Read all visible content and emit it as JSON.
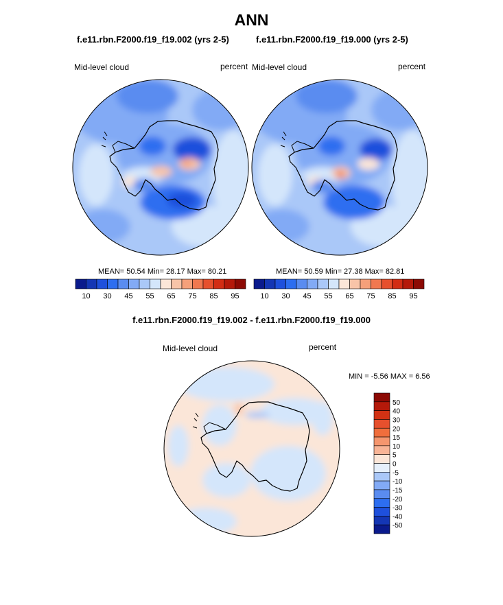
{
  "page": {
    "title": "ANN",
    "diff_title": "f.e11.rbn.F2000.f19_f19.002 - f.e11.rbn.F2000.f19_f19.000"
  },
  "panels": [
    {
      "case": "f.e11.rbn.F2000.f19_f19.002 (yrs 2-5)",
      "variable": "Mid-level cloud",
      "units": "percent",
      "stats": "MEAN=  50.54  Min=  28.17  Max=  80.21"
    },
    {
      "case": "f.e11.rbn.F2000.f19_f19.000 (yrs 2-5)",
      "variable": "Mid-level cloud",
      "units": "percent",
      "stats": "MEAN=  50.59  Min=  27.38  Max=  82.81"
    }
  ],
  "diff_panel": {
    "variable": "Mid-level cloud",
    "units": "percent",
    "stats": "MIN =  -5.56 MAX =   6.56"
  },
  "colorbar": {
    "colors": [
      "#0a1a8c",
      "#1436b4",
      "#1e50dc",
      "#2d6ef0",
      "#5a8cf0",
      "#82aaf5",
      "#aac8f8",
      "#d4e6fb",
      "#fbe6d8",
      "#f8c4a8",
      "#f5a07a",
      "#f07850",
      "#e6502d",
      "#d22d14",
      "#b4190a",
      "#8c0a04"
    ],
    "labels": [
      "10",
      "30",
      "45",
      "55",
      "65",
      "75",
      "85",
      "95"
    ]
  },
  "diff_colorbar": {
    "colors": [
      "#8c0a04",
      "#b4190a",
      "#d23214",
      "#e6502d",
      "#f06e3c",
      "#f5966e",
      "#f8b496",
      "#fbe6d8",
      "#e6f0fb",
      "#aac8f8",
      "#82aaf5",
      "#5a8cf0",
      "#2d6ef0",
      "#1e50dc",
      "#1436b4",
      "#0a1a8c"
    ],
    "labels": [
      "50",
      "40",
      "30",
      "20",
      "15",
      "10",
      "5",
      "0",
      "-5",
      "-10",
      "-15",
      "-20",
      "-30",
      "-40",
      "-50"
    ]
  },
  "map_colors": {
    "ocean_left": "#aac8f8",
    "ocean_right": "#aac8f8",
    "diff_land": "#fbe6d8",
    "diff_ocean": "#d4e6fb"
  }
}
